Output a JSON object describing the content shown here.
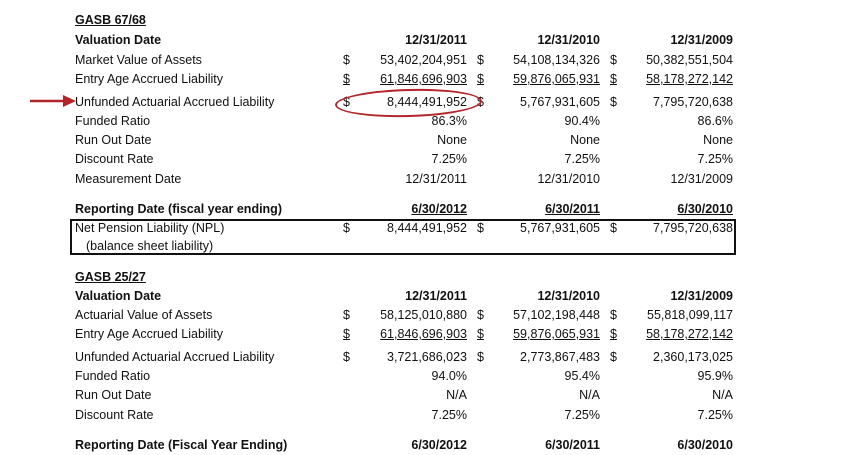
{
  "gasb6768": {
    "title": "GASB 67/68",
    "header": {
      "label": "Valuation Date",
      "c1": "12/31/2011",
      "c2": "12/31/2010",
      "c3": "12/31/2009"
    },
    "market_value": {
      "label": "Market Value of Assets",
      "c1": "53,402,204,951",
      "c2": "54,108,134,326",
      "c3": "50,382,551,504"
    },
    "entry_age": {
      "label": "Entry Age Accrued Liability",
      "c1": "61,846,696,903",
      "c2": "59,876,065,931",
      "c3": "58,178,272,142"
    },
    "unfunded": {
      "label": "Unfunded Actuarial Accrued Liability",
      "c1": "8,444,491,952",
      "c2": "5,767,931,605",
      "c3": "7,795,720,638"
    },
    "funded_ratio": {
      "label": "Funded Ratio",
      "c1": "86.3%",
      "c2": "90.4%",
      "c3": "86.6%"
    },
    "run_out": {
      "label": "Run Out Date",
      "c1": "None",
      "c2": "None",
      "c3": "None"
    },
    "discount": {
      "label": "Discount Rate",
      "c1": "7.25%",
      "c2": "7.25%",
      "c3": "7.25%"
    },
    "measurement": {
      "label": "Measurement Date",
      "c1": "12/31/2011",
      "c2": "12/31/2010",
      "c3": "12/31/2009"
    },
    "reporting": {
      "label": "Reporting Date (fiscal year ending)",
      "c1": "6/30/2012",
      "c2": "6/30/2011",
      "c3": "6/30/2010"
    },
    "npl": {
      "label": "Net Pension Liability (NPL)",
      "sub": "(balance sheet liability)",
      "c1": "8,444,491,952",
      "c2": "5,767,931,605",
      "c3": "7,795,720,638"
    }
  },
  "gasb2527": {
    "title": "GASB 25/27",
    "header": {
      "label": "Valuation Date",
      "c1": "12/31/2011",
      "c2": "12/31/2010",
      "c3": "12/31/2009"
    },
    "actuarial_value": {
      "label": "Actuarial Value of Assets",
      "c1": "58,125,010,880",
      "c2": "57,102,198,448",
      "c3": "55,818,099,117"
    },
    "entry_age": {
      "label": "Entry Age Accrued Liability",
      "c1": "61,846,696,903",
      "c2": "59,876,065,931",
      "c3": "58,178,272,142"
    },
    "unfunded": {
      "label": "Unfunded Actuarial Accrued Liability",
      "c1": "3,721,686,023",
      "c2": "2,773,867,483",
      "c3": "2,360,173,025"
    },
    "funded_ratio": {
      "label": "Funded Ratio",
      "c1": "94.0%",
      "c2": "95.4%",
      "c3": "95.9%"
    },
    "run_out": {
      "label": "Run Out Date",
      "c1": "N/A",
      "c2": "N/A",
      "c3": "N/A"
    },
    "discount": {
      "label": "Discount Rate",
      "c1": "7.25%",
      "c2": "7.25%",
      "c3": "7.25%"
    },
    "reporting": {
      "label": "Reporting Date (Fiscal Year Ending)",
      "c1": "6/30/2012",
      "c2": "6/30/2011",
      "c3": "6/30/2010"
    }
  },
  "currency_symbol": "$",
  "accent_color": "#b2262b"
}
